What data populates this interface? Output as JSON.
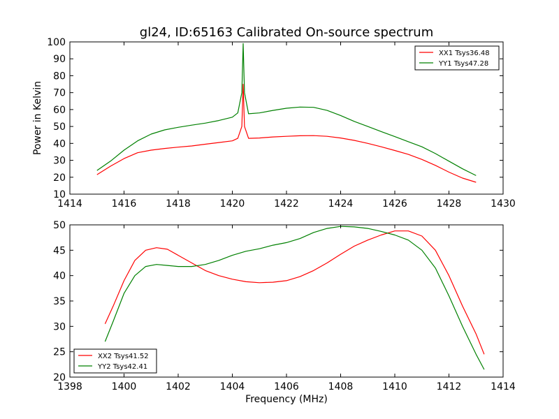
{
  "figure": {
    "title": "gl24, ID:65163 Calibrated On-source spectrum",
    "xlabel": "Frequency (MHz)",
    "ylabel": "Power in Kelvin"
  },
  "chart_data": [
    {
      "type": "line",
      "title": "gl24, ID:65163 Calibrated On-source spectrum",
      "xlabel": "",
      "ylabel": "Power in Kelvin",
      "xlim": [
        1414,
        1430
      ],
      "ylim": [
        10,
        100
      ],
      "xticks": [
        1414,
        1416,
        1418,
        1420,
        1422,
        1424,
        1426,
        1428,
        1430
      ],
      "yticks": [
        10,
        20,
        30,
        40,
        50,
        60,
        70,
        80,
        90,
        100
      ],
      "legend_position": "top-right",
      "grid": false,
      "series": [
        {
          "name": "XX1 Tsys36.48",
          "color": "#ff0000",
          "x": [
            1415.0,
            1415.5,
            1416.0,
            1416.5,
            1417.0,
            1417.5,
            1418.0,
            1418.5,
            1419.0,
            1419.5,
            1420.0,
            1420.2,
            1420.35,
            1420.4,
            1420.45,
            1420.6,
            1421.0,
            1421.5,
            1422.0,
            1422.5,
            1423.0,
            1423.5,
            1424.0,
            1424.5,
            1425.0,
            1425.5,
            1426.0,
            1426.5,
            1427.0,
            1427.5,
            1428.0,
            1428.5,
            1429.0
          ],
          "y": [
            21.5,
            26.5,
            31.0,
            34.5,
            36.0,
            37.0,
            37.8,
            38.5,
            39.5,
            40.5,
            41.5,
            43.0,
            50.0,
            75.0,
            50.0,
            43.0,
            43.2,
            43.8,
            44.2,
            44.5,
            44.6,
            44.2,
            43.2,
            41.8,
            40.0,
            38.0,
            35.8,
            33.5,
            30.5,
            27.0,
            23.0,
            19.5,
            17.0
          ]
        },
        {
          "name": "YY1 Tsys47.28",
          "color": "#008000",
          "x": [
            1415.0,
            1415.5,
            1416.0,
            1416.5,
            1417.0,
            1417.5,
            1418.0,
            1418.5,
            1419.0,
            1419.5,
            1420.0,
            1420.2,
            1420.35,
            1420.4,
            1420.45,
            1420.6,
            1421.0,
            1421.5,
            1422.0,
            1422.5,
            1423.0,
            1423.5,
            1424.0,
            1424.5,
            1425.0,
            1425.5,
            1426.0,
            1426.5,
            1427.0,
            1427.5,
            1428.0,
            1428.5,
            1429.0
          ],
          "y": [
            24.0,
            29.5,
            36.0,
            41.5,
            45.5,
            48.0,
            49.5,
            50.8,
            52.0,
            53.5,
            55.5,
            58.0,
            70.0,
            99.0,
            70.0,
            57.5,
            58.0,
            59.5,
            60.8,
            61.5,
            61.3,
            59.5,
            56.5,
            53.0,
            50.0,
            47.0,
            44.0,
            41.0,
            38.0,
            34.0,
            29.5,
            25.0,
            21.0
          ]
        }
      ]
    },
    {
      "type": "line",
      "title": "",
      "xlabel": "Frequency (MHz)",
      "ylabel": "",
      "xlim": [
        1398,
        1414
      ],
      "ylim": [
        20,
        50
      ],
      "xticks": [
        1398,
        1400,
        1402,
        1404,
        1406,
        1408,
        1410,
        1412,
        1414
      ],
      "yticks": [
        20,
        25,
        30,
        35,
        40,
        45,
        50
      ],
      "legend_position": "bottom-left",
      "grid": false,
      "series": [
        {
          "name": "XX2 Tsys41.52",
          "color": "#ff0000",
          "x": [
            1399.3,
            1399.6,
            1400.0,
            1400.4,
            1400.8,
            1401.2,
            1401.6,
            1402.0,
            1402.5,
            1403.0,
            1403.5,
            1404.0,
            1404.5,
            1405.0,
            1405.5,
            1406.0,
            1406.5,
            1407.0,
            1407.5,
            1408.0,
            1408.5,
            1409.0,
            1409.5,
            1410.0,
            1410.5,
            1411.0,
            1411.5,
            1412.0,
            1412.5,
            1413.0,
            1413.3
          ],
          "y": [
            30.5,
            34.0,
            39.0,
            43.0,
            45.0,
            45.5,
            45.2,
            44.0,
            42.5,
            41.0,
            40.0,
            39.3,
            38.8,
            38.6,
            38.7,
            39.0,
            39.8,
            41.0,
            42.5,
            44.2,
            45.8,
            47.0,
            48.0,
            48.8,
            48.8,
            47.8,
            45.0,
            40.0,
            34.0,
            28.5,
            24.5
          ]
        },
        {
          "name": "YY2 Tsys42.41",
          "color": "#008000",
          "x": [
            1399.3,
            1399.6,
            1400.0,
            1400.4,
            1400.8,
            1401.2,
            1401.6,
            1402.0,
            1402.5,
            1403.0,
            1403.5,
            1404.0,
            1404.5,
            1405.0,
            1405.5,
            1406.0,
            1406.5,
            1407.0,
            1407.5,
            1408.0,
            1408.5,
            1409.0,
            1409.5,
            1410.0,
            1410.5,
            1411.0,
            1411.5,
            1412.0,
            1412.5,
            1413.0,
            1413.3
          ],
          "y": [
            27.0,
            31.0,
            36.5,
            40.0,
            41.8,
            42.2,
            42.0,
            41.8,
            41.8,
            42.2,
            43.0,
            44.0,
            44.8,
            45.3,
            46.0,
            46.5,
            47.3,
            48.5,
            49.3,
            49.7,
            49.6,
            49.3,
            48.7,
            48.0,
            47.0,
            45.0,
            41.5,
            36.0,
            30.0,
            24.5,
            21.5
          ]
        }
      ]
    }
  ]
}
